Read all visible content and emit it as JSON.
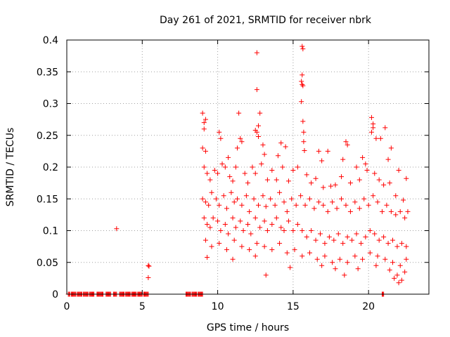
{
  "chart_data": {
    "type": "scatter",
    "title": "Day 261 of 2021, SRMTID for receiver nbrk",
    "xlabel": "GPS time / hours",
    "ylabel": "SRMTID / TECUs",
    "xlim": [
      0,
      24
    ],
    "ylim": [
      0,
      0.4
    ],
    "x_ticks": [
      0,
      5,
      10,
      15,
      20
    ],
    "y_ticks": [
      0,
      0.05,
      0.1,
      0.15,
      0.2,
      0.25,
      0.3,
      0.35,
      0.4
    ],
    "x_tick_labels": [
      "0",
      "5",
      "10",
      "15",
      "20"
    ],
    "y_tick_labels": [
      "0",
      "0.05",
      "0.1",
      "0.15",
      "0.2",
      "0.25",
      "0.3",
      "0.35",
      "0.4"
    ],
    "grid": true,
    "marker": "+",
    "color": "#ff0000",
    "series": [
      {
        "name": "SRMTID",
        "notes": "dense cloud of points between about 9 and 22.6 hours, values mostly 0.03-0.28 TECU",
        "points": [
          [
            3.3,
            0.103
          ],
          [
            5.4,
            0.045
          ],
          [
            5.45,
            0.044
          ],
          [
            5.4,
            0.026
          ],
          [
            12.6,
            0.38
          ],
          [
            15.6,
            0.39
          ],
          [
            15.65,
            0.386
          ],
          [
            12.6,
            0.322
          ],
          [
            15.6,
            0.345
          ],
          [
            15.55,
            0.335
          ],
          [
            15.6,
            0.33
          ],
          [
            15.65,
            0.328
          ],
          [
            15.55,
            0.303
          ],
          [
            15.65,
            0.272
          ],
          [
            9.0,
            0.285
          ],
          [
            9.1,
            0.27
          ],
          [
            9.2,
            0.275
          ],
          [
            9.1,
            0.26
          ],
          [
            11.4,
            0.285
          ],
          [
            12.8,
            0.285
          ],
          [
            20.2,
            0.278
          ],
          [
            20.3,
            0.268
          ],
          [
            20.3,
            0.262
          ],
          [
            20.2,
            0.255
          ],
          [
            20.5,
            0.245
          ],
          [
            21.1,
            0.262
          ],
          [
            10.1,
            0.255
          ],
          [
            10.2,
            0.245
          ],
          [
            12.7,
            0.265
          ],
          [
            12.6,
            0.255
          ],
          [
            12.5,
            0.258
          ],
          [
            12.7,
            0.248
          ],
          [
            15.7,
            0.255
          ],
          [
            15.7,
            0.24
          ],
          [
            15.75,
            0.226
          ],
          [
            18.5,
            0.24
          ],
          [
            18.6,
            0.235
          ],
          [
            20.8,
            0.245
          ],
          [
            9.0,
            0.23
          ],
          [
            9.2,
            0.225
          ],
          [
            11.5,
            0.245
          ],
          [
            11.6,
            0.24
          ],
          [
            11.3,
            0.23
          ],
          [
            10.7,
            0.215
          ],
          [
            13.0,
            0.235
          ],
          [
            13.1,
            0.22
          ],
          [
            14.2,
            0.238
          ],
          [
            14.5,
            0.232
          ],
          [
            14.0,
            0.218
          ],
          [
            16.7,
            0.225
          ],
          [
            16.9,
            0.21
          ],
          [
            17.3,
            0.225
          ],
          [
            18.3,
            0.212
          ],
          [
            19.2,
            0.2
          ],
          [
            19.6,
            0.215
          ],
          [
            19.8,
            0.205
          ],
          [
            21.5,
            0.23
          ],
          [
            21.3,
            0.212
          ],
          [
            22.0,
            0.195
          ],
          [
            22.5,
            0.182
          ],
          [
            9.1,
            0.2
          ],
          [
            9.3,
            0.19
          ],
          [
            9.5,
            0.18
          ],
          [
            9.8,
            0.195
          ],
          [
            10.0,
            0.19
          ],
          [
            10.3,
            0.205
          ],
          [
            10.5,
            0.2
          ],
          [
            10.8,
            0.185
          ],
          [
            11.0,
            0.178
          ],
          [
            11.2,
            0.2
          ],
          [
            11.8,
            0.19
          ],
          [
            12.0,
            0.175
          ],
          [
            12.3,
            0.2
          ],
          [
            12.5,
            0.19
          ],
          [
            12.9,
            0.205
          ],
          [
            13.3,
            0.18
          ],
          [
            13.6,
            0.195
          ],
          [
            13.9,
            0.18
          ],
          [
            14.3,
            0.2
          ],
          [
            14.7,
            0.178
          ],
          [
            15.0,
            0.195
          ],
          [
            15.3,
            0.2
          ],
          [
            15.9,
            0.188
          ],
          [
            16.2,
            0.175
          ],
          [
            16.5,
            0.182
          ],
          [
            17.0,
            0.168
          ],
          [
            17.5,
            0.17
          ],
          [
            17.8,
            0.172
          ],
          [
            18.2,
            0.185
          ],
          [
            18.8,
            0.175
          ],
          [
            19.4,
            0.18
          ],
          [
            19.9,
            0.195
          ],
          [
            20.4,
            0.19
          ],
          [
            20.7,
            0.18
          ],
          [
            21.0,
            0.172
          ],
          [
            21.4,
            0.175
          ],
          [
            21.8,
            0.155
          ],
          [
            22.3,
            0.148
          ],
          [
            22.6,
            0.13
          ],
          [
            9.0,
            0.15
          ],
          [
            9.2,
            0.145
          ],
          [
            9.4,
            0.14
          ],
          [
            9.6,
            0.16
          ],
          [
            9.9,
            0.15
          ],
          [
            10.1,
            0.14
          ],
          [
            10.4,
            0.155
          ],
          [
            10.6,
            0.135
          ],
          [
            10.9,
            0.16
          ],
          [
            11.1,
            0.145
          ],
          [
            11.3,
            0.15
          ],
          [
            11.6,
            0.14
          ],
          [
            11.9,
            0.155
          ],
          [
            12.1,
            0.13
          ],
          [
            12.4,
            0.15
          ],
          [
            12.7,
            0.14
          ],
          [
            13.0,
            0.155
          ],
          [
            13.2,
            0.138
          ],
          [
            13.5,
            0.15
          ],
          [
            13.8,
            0.14
          ],
          [
            14.1,
            0.16
          ],
          [
            14.4,
            0.145
          ],
          [
            14.6,
            0.13
          ],
          [
            14.9,
            0.15
          ],
          [
            15.2,
            0.14
          ],
          [
            15.5,
            0.155
          ],
          [
            15.8,
            0.14
          ],
          [
            16.1,
            0.15
          ],
          [
            16.4,
            0.135
          ],
          [
            16.7,
            0.145
          ],
          [
            17.0,
            0.14
          ],
          [
            17.3,
            0.13
          ],
          [
            17.6,
            0.145
          ],
          [
            17.9,
            0.135
          ],
          [
            18.2,
            0.15
          ],
          [
            18.5,
            0.14
          ],
          [
            18.8,
            0.13
          ],
          [
            19.1,
            0.145
          ],
          [
            19.4,
            0.135
          ],
          [
            19.7,
            0.15
          ],
          [
            20.0,
            0.14
          ],
          [
            20.3,
            0.155
          ],
          [
            20.6,
            0.145
          ],
          [
            20.9,
            0.13
          ],
          [
            21.2,
            0.14
          ],
          [
            21.5,
            0.13
          ],
          [
            21.8,
            0.125
          ],
          [
            22.1,
            0.13
          ],
          [
            22.4,
            0.12
          ],
          [
            9.1,
            0.12
          ],
          [
            9.3,
            0.11
          ],
          [
            9.5,
            0.105
          ],
          [
            9.7,
            0.12
          ],
          [
            10.0,
            0.115
          ],
          [
            10.2,
            0.1
          ],
          [
            10.5,
            0.11
          ],
          [
            10.7,
            0.095
          ],
          [
            11.0,
            0.12
          ],
          [
            11.2,
            0.105
          ],
          [
            11.5,
            0.115
          ],
          [
            11.7,
            0.1
          ],
          [
            12.0,
            0.11
          ],
          [
            12.2,
            0.095
          ],
          [
            12.5,
            0.12
          ],
          [
            12.8,
            0.105
          ],
          [
            13.1,
            0.115
          ],
          [
            13.3,
            0.1
          ],
          [
            13.6,
            0.11
          ],
          [
            13.9,
            0.12
          ],
          [
            14.2,
            0.105
          ],
          [
            14.4,
            0.1
          ],
          [
            14.7,
            0.115
          ],
          [
            15.0,
            0.1
          ],
          [
            15.3,
            0.11
          ],
          [
            15.6,
            0.1
          ],
          [
            15.9,
            0.09
          ],
          [
            16.2,
            0.1
          ],
          [
            16.5,
            0.085
          ],
          [
            16.8,
            0.095
          ],
          [
            17.1,
            0.08
          ],
          [
            17.4,
            0.09
          ],
          [
            17.7,
            0.085
          ],
          [
            18.0,
            0.095
          ],
          [
            18.3,
            0.08
          ],
          [
            18.6,
            0.09
          ],
          [
            18.9,
            0.085
          ],
          [
            19.2,
            0.095
          ],
          [
            19.5,
            0.08
          ],
          [
            19.8,
            0.09
          ],
          [
            20.1,
            0.1
          ],
          [
            20.4,
            0.095
          ],
          [
            20.7,
            0.085
          ],
          [
            21.0,
            0.09
          ],
          [
            21.3,
            0.08
          ],
          [
            21.6,
            0.085
          ],
          [
            21.9,
            0.075
          ],
          [
            22.2,
            0.08
          ],
          [
            22.5,
            0.075
          ],
          [
            9.2,
            0.085
          ],
          [
            9.6,
            0.075
          ],
          [
            10.1,
            0.08
          ],
          [
            10.6,
            0.07
          ],
          [
            11.1,
            0.085
          ],
          [
            11.6,
            0.075
          ],
          [
            12.1,
            0.07
          ],
          [
            12.6,
            0.08
          ],
          [
            13.1,
            0.075
          ],
          [
            13.6,
            0.07
          ],
          [
            14.1,
            0.08
          ],
          [
            14.6,
            0.065
          ],
          [
            15.1,
            0.07
          ],
          [
            15.6,
            0.06
          ],
          [
            16.1,
            0.065
          ],
          [
            16.6,
            0.055
          ],
          [
            17.1,
            0.06
          ],
          [
            17.6,
            0.05
          ],
          [
            18.1,
            0.055
          ],
          [
            18.6,
            0.05
          ],
          [
            19.1,
            0.06
          ],
          [
            19.6,
            0.055
          ],
          [
            20.1,
            0.065
          ],
          [
            20.6,
            0.06
          ],
          [
            21.1,
            0.055
          ],
          [
            21.6,
            0.05
          ],
          [
            22.1,
            0.045
          ],
          [
            22.5,
            0.055
          ],
          [
            9.3,
            0.058
          ],
          [
            11.0,
            0.055
          ],
          [
            12.5,
            0.06
          ],
          [
            13.2,
            0.03
          ],
          [
            14.8,
            0.042
          ],
          [
            16.9,
            0.045
          ],
          [
            17.8,
            0.04
          ],
          [
            18.4,
            0.03
          ],
          [
            19.3,
            0.04
          ],
          [
            20.5,
            0.045
          ],
          [
            21.4,
            0.038
          ],
          [
            21.9,
            0.03
          ],
          [
            22.0,
            0.018
          ],
          [
            22.2,
            0.022
          ],
          [
            22.4,
            0.035
          ],
          [
            21.7,
            0.025
          ]
        ],
        "zero_segments": [
          [
            0.1,
            0.2
          ],
          [
            0.3,
            0.6
          ],
          [
            0.7,
            1.0
          ],
          [
            1.1,
            1.4
          ],
          [
            1.5,
            1.8
          ],
          [
            2.0,
            2.4
          ],
          [
            2.6,
            2.9
          ],
          [
            3.1,
            3.3
          ],
          [
            3.5,
            3.8
          ],
          [
            3.9,
            4.2
          ],
          [
            4.3,
            4.6
          ],
          [
            4.7,
            5.0
          ],
          [
            5.1,
            5.4
          ],
          [
            7.9,
            8.2
          ],
          [
            8.3,
            8.6
          ],
          [
            8.7,
            9.0
          ],
          [
            20.9,
            21.0
          ]
        ]
      }
    ]
  }
}
